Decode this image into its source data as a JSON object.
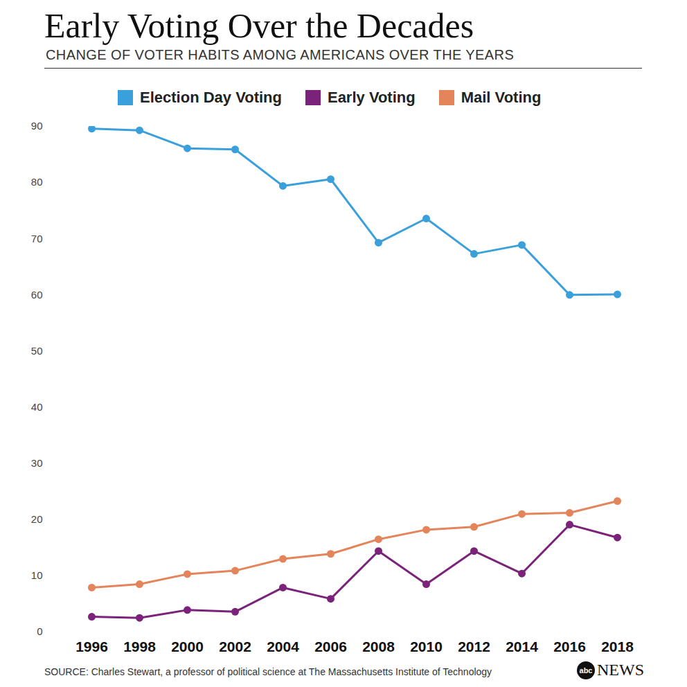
{
  "chart_data": {
    "type": "line",
    "title": "Early Voting Over the Decades",
    "subtitle": "CHANGE OF VOTER HABITS AMONG AMERICANS OVER THE YEARS",
    "source": "SOURCE: Charles Stewart, a professor of political science at The Massachusetts Institute of Technology",
    "logo": [
      "abc",
      "NEWS"
    ],
    "categories": [
      "1996",
      "1998",
      "2000",
      "2002",
      "2004",
      "2006",
      "2008",
      "2010",
      "2012",
      "2014",
      "2016",
      "2018"
    ],
    "series": [
      {
        "name": "Election Day Voting",
        "color": "#3aa0dc",
        "marker": "circle",
        "values": [
          89.6,
          89.3,
          86.1,
          85.9,
          79.4,
          80.6,
          69.3,
          73.6,
          67.3,
          68.9,
          60.0,
          60.1
        ]
      },
      {
        "name": "Early Voting",
        "color": "#7b237a",
        "marker": "circle",
        "values": [
          2.7,
          2.5,
          3.9,
          3.6,
          7.9,
          5.9,
          14.4,
          8.5,
          14.4,
          10.4,
          19.1,
          16.8
        ]
      },
      {
        "name": "Mail Voting",
        "color": "#e3845a",
        "marker": "circle",
        "values": [
          7.9,
          8.5,
          10.3,
          10.9,
          13.0,
          13.9,
          16.5,
          18.2,
          18.7,
          21.0,
          21.2,
          23.3
        ]
      }
    ],
    "ylim": [
      0,
      90
    ],
    "yticks": [
      0,
      10,
      20,
      30,
      40,
      50,
      60,
      70,
      80,
      90
    ],
    "grid": false,
    "legend": "top"
  }
}
